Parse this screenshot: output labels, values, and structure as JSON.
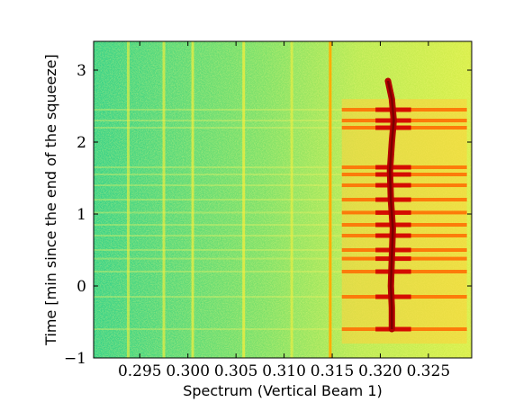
{
  "chart_data": {
    "type": "heatmap",
    "title": "",
    "xlabel": "Spectrum (Vertical Beam 1)",
    "ylabel": "Time [min since the end of the squeeze]",
    "xlim": [
      0.2902,
      0.3295
    ],
    "ylim": [
      -1,
      3.4
    ],
    "x_ticks": [
      0.295,
      0.3,
      0.305,
      0.31,
      0.315,
      0.32,
      0.325
    ],
    "x_tick_labels": [
      "0.295",
      "0.300",
      "0.305",
      "0.310",
      "0.315",
      "0.320",
      "0.325"
    ],
    "y_ticks": [
      -1,
      0,
      1,
      2,
      3
    ],
    "y_tick_labels": [
      "−1",
      "0",
      "1",
      "2",
      "3"
    ],
    "colormap": [
      "#1fbf8a",
      "#7fe060",
      "#e8f040",
      "#ffb000",
      "#ff3a00",
      "#c80000"
    ],
    "vertical_lines": [
      {
        "x": 0.2938,
        "intensity": 0.35
      },
      {
        "x": 0.2975,
        "intensity": 0.4
      },
      {
        "x": 0.3005,
        "intensity": 0.45
      },
      {
        "x": 0.3058,
        "intensity": 0.5
      },
      {
        "x": 0.3108,
        "intensity": 0.35
      },
      {
        "x": 0.3148,
        "intensity": 0.65
      }
    ],
    "tune_trace": {
      "name": "tune line",
      "points": [
        [
          0.3208,
          2.85
        ],
        [
          0.3212,
          2.6
        ],
        [
          0.3214,
          2.3
        ],
        [
          0.3212,
          2.0
        ],
        [
          0.321,
          1.6
        ],
        [
          0.3211,
          1.2
        ],
        [
          0.3213,
          0.8
        ],
        [
          0.3212,
          0.4
        ],
        [
          0.3211,
          0.0
        ],
        [
          0.3212,
          -0.3
        ],
        [
          0.3212,
          -0.6
        ]
      ]
    },
    "burst_times": [
      2.45,
      2.3,
      2.2,
      1.65,
      1.55,
      1.4,
      1.2,
      1.02,
      0.85,
      0.7,
      0.5,
      0.38,
      0.2,
      -0.15,
      -0.6
    ],
    "burst_x_range": [
      0.316,
      0.329
    ]
  }
}
